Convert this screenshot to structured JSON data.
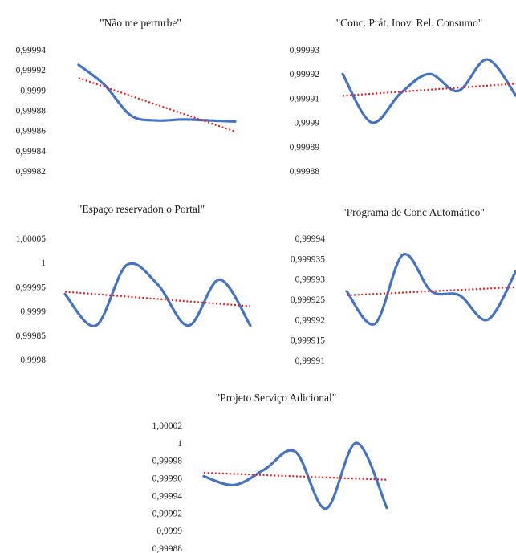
{
  "colors": {
    "series": "#4472C4",
    "trend": "#E02020",
    "text": "#222222"
  },
  "chart_data": [
    {
      "type": "line",
      "title": "\"Não me perturbe\"",
      "yticks": [
        "0,99994",
        "0,99992",
        "0,9999",
        "0,99988",
        "0,99986",
        "0,99984",
        "0,99982"
      ],
      "ylim": [
        0.99982,
        0.99994
      ],
      "x": [
        0,
        1,
        2,
        3,
        4,
        5,
        6
      ],
      "series": [
        {
          "values": [
            0.999925,
            0.999905,
            0.999875,
            0.99987,
            0.999871,
            0.99987,
            0.999869
          ]
        }
      ],
      "trendline": {
        "type": "linear",
        "values": [
          0.999912,
          0.999859
        ]
      },
      "grid": false,
      "legend": "none"
    },
    {
      "type": "line",
      "title": "\"Conc. Prát. Inov. Rel. Consumo\"",
      "yticks": [
        "0,99993",
        "0,99992",
        "0,99991",
        "0,9999",
        "0,99989",
        "0,99988"
      ],
      "ylim": [
        0.99988,
        0.99993
      ],
      "x": [
        0,
        1,
        2,
        3,
        4,
        5,
        6
      ],
      "series": [
        {
          "values": [
            0.99992,
            0.9999,
            0.999912,
            0.99992,
            0.999913,
            0.999926,
            0.999911
          ]
        }
      ],
      "trendline": {
        "type": "linear",
        "values": [
          0.999911,
          0.999916
        ]
      },
      "grid": false,
      "legend": "none"
    },
    {
      "type": "line",
      "title": "\"Espaço reservadon o Portal\"",
      "yticks": [
        "1,00005",
        "1",
        "0,99995",
        "0,9999",
        "0,99985",
        "0,9998"
      ],
      "ylim": [
        0.9998,
        1.00005
      ],
      "x": [
        0,
        1,
        2,
        3,
        4,
        5,
        6
      ],
      "series": [
        {
          "values": [
            0.999935,
            0.99987,
            0.999995,
            0.999955,
            0.99987,
            0.999965,
            0.99987
          ]
        }
      ],
      "trendline": {
        "type": "linear",
        "values": [
          0.99994,
          0.99991
        ]
      },
      "grid": false,
      "legend": "none"
    },
    {
      "type": "line",
      "title": "\"Programa de Conc Automático\"",
      "yticks": [
        "0,99994",
        "0,999935",
        "0,99993",
        "0,999925",
        "0,99992",
        "0,999915",
        "0,99991"
      ],
      "ylim": [
        0.99991,
        0.99994
      ],
      "x": [
        0,
        1,
        2,
        3,
        4,
        5,
        6
      ],
      "series": [
        {
          "values": [
            0.999927,
            0.999919,
            0.999936,
            0.999927,
            0.999926,
            0.99992,
            0.999932
          ]
        }
      ],
      "trendline": {
        "type": "linear",
        "values": [
          0.999926,
          0.999928
        ]
      },
      "grid": false,
      "legend": "none"
    },
    {
      "type": "line",
      "title": "\"Projeto Serviço Adicional\"",
      "yticks": [
        "1,00002",
        "1",
        "0,99998",
        "0,99996",
        "0,99994",
        "0,99992",
        "0,9999",
        "0,99988"
      ],
      "ylim": [
        0.99988,
        1.00002
      ],
      "x": [
        0,
        1,
        2,
        3,
        4,
        5,
        6
      ],
      "series": [
        {
          "values": [
            0.999962,
            0.999952,
            0.99997,
            0.99999,
            0.999925,
            1.0,
            0.999926
          ]
        }
      ],
      "trendline": {
        "type": "linear",
        "values": [
          0.999966,
          0.999958
        ]
      },
      "grid": false,
      "legend": "none"
    }
  ]
}
